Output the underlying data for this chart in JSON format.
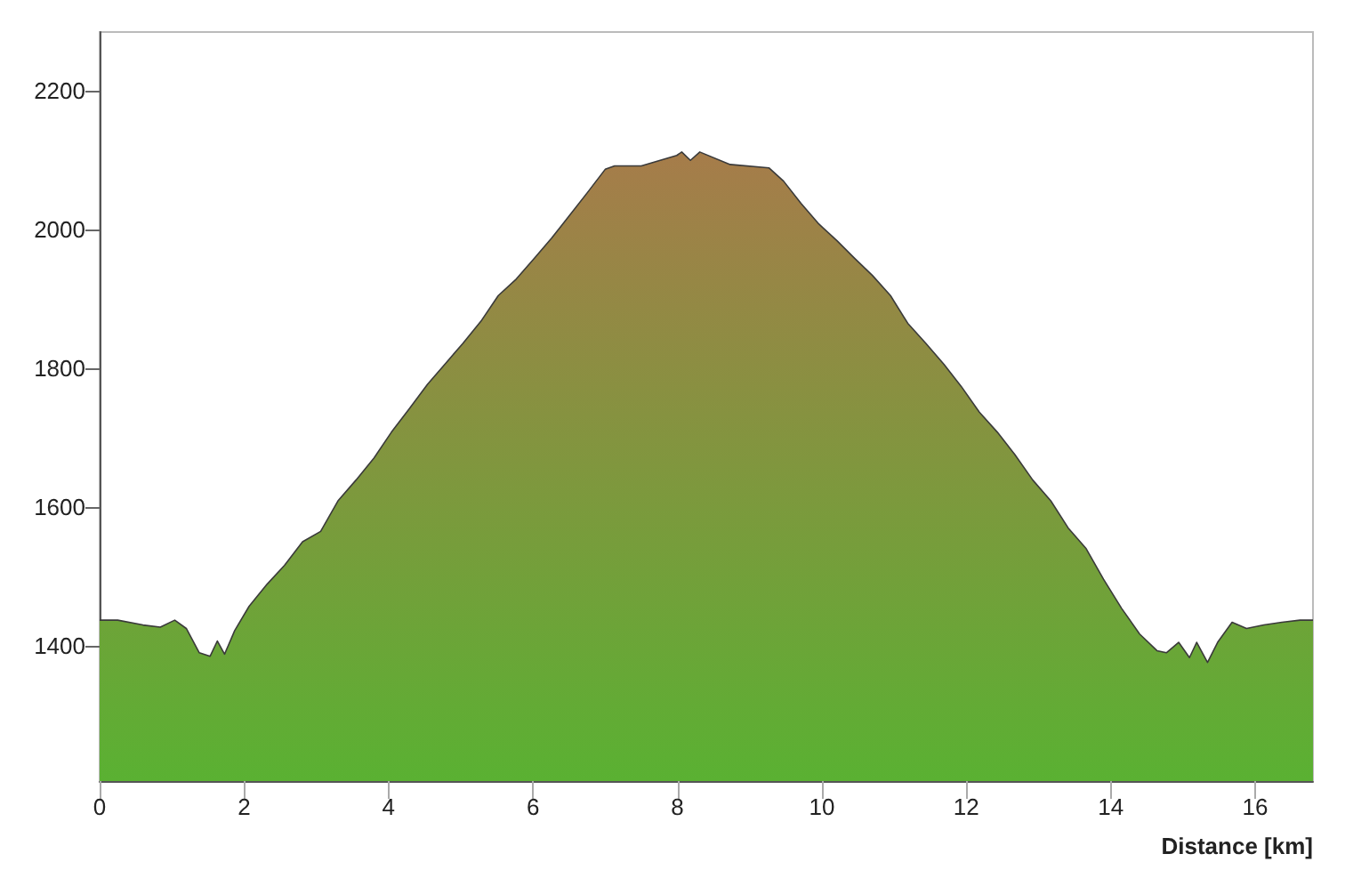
{
  "chart_data": {
    "type": "area",
    "xlabel": "Distance [km]",
    "x": [
      0,
      0.25,
      0.6,
      0.84,
      1.04,
      1.2,
      1.38,
      1.53,
      1.63,
      1.73,
      1.87,
      2.07,
      2.32,
      2.56,
      2.81,
      3.06,
      3.3,
      3.55,
      3.8,
      4.04,
      4.29,
      4.54,
      4.78,
      5.03,
      5.28,
      5.52,
      5.77,
      6.02,
      6.26,
      6.51,
      6.75,
      7.0,
      7.13,
      7.5,
      7.99,
      8.06,
      8.18,
      8.31,
      8.73,
      9.27,
      9.47,
      9.71,
      9.96,
      10.21,
      10.45,
      10.7,
      10.95,
      11.19,
      11.44,
      11.69,
      11.93,
      12.18,
      12.43,
      12.67,
      12.92,
      13.17,
      13.41,
      13.66,
      13.9,
      14.15,
      14.4,
      14.64,
      14.77,
      14.94,
      15.09,
      15.19,
      15.34,
      15.48,
      15.68,
      15.88,
      16.12,
      16.37,
      16.62,
      16.8
    ],
    "series": [
      {
        "color": "#5ab132",
        "values": [
          1437,
          1437,
          1430,
          1427,
          1437,
          1425,
          1390,
          1385,
          1407,
          1388,
          1422,
          1457,
          1489,
          1516,
          1550,
          1565,
          1609,
          1639,
          1671,
          1708,
          1742,
          1777,
          1806,
          1836,
          1868,
          1905,
          1929,
          1959,
          1988,
          2021,
          2053,
          2087,
          2092,
          2092,
          2107,
          2112,
          2100,
          2112,
          2094,
          2089,
          2070,
          2038,
          2008,
          1984,
          1959,
          1934,
          1905,
          1865,
          1836,
          1806,
          1774,
          1737,
          1708,
          1676,
          1639,
          1609,
          1570,
          1540,
          1496,
          1454,
          1417,
          1393,
          1390,
          1405,
          1383,
          1405,
          1376,
          1405,
          1434,
          1425,
          1430,
          1434,
          1437,
          1437
        ]
      }
    ],
    "xlim": [
      0,
      16.8
    ],
    "xticks": [
      0,
      2,
      4,
      6,
      8,
      10,
      12,
      14,
      16
    ],
    "ylim": [
      1205,
      2285
    ],
    "yticks": [
      1400,
      1600,
      1800,
      2000,
      2200
    ],
    "grid": false,
    "marker": "none"
  }
}
